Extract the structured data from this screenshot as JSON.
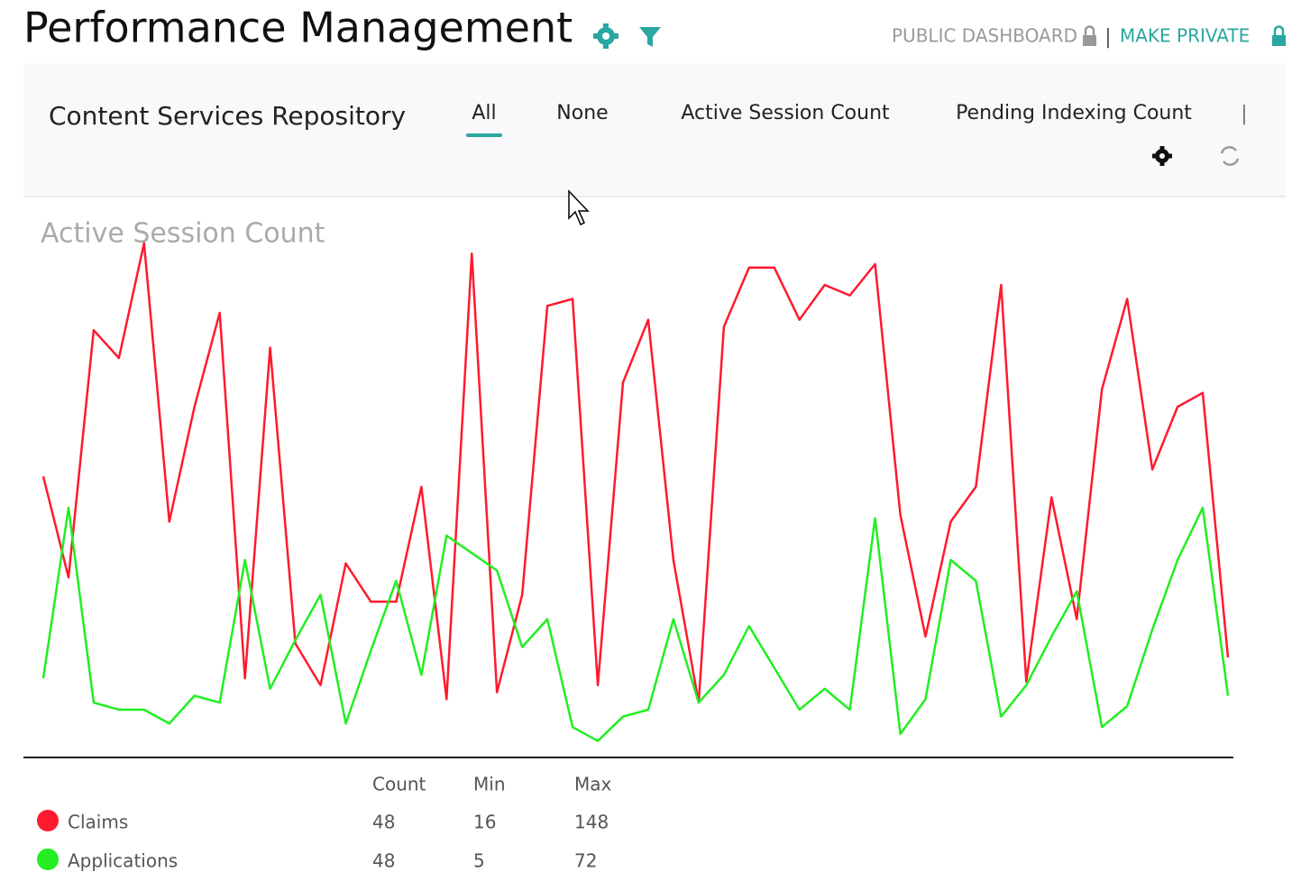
{
  "header": {
    "title": "Performance Management",
    "public_label": "PUBLIC DASHBOARD",
    "separator": "|",
    "make_private": "MAKE PRIVATE"
  },
  "panel": {
    "title": "Content Services Repository",
    "tabs": [
      "All",
      "None",
      "Active Session Count",
      "Pending Indexing Count"
    ],
    "separator": "|"
  },
  "chart_data": {
    "type": "line",
    "title": "Active Session Count",
    "ylim": [
      0,
      150
    ],
    "stats_columns": [
      "Count",
      "Min",
      "Max"
    ],
    "series": [
      {
        "name": "Claims",
        "color": "#ff1a2e",
        "stats": [
          48,
          16,
          148
        ],
        "values": [
          81,
          52,
          123,
          115,
          148,
          68,
          101,
          128,
          23,
          118,
          33,
          21,
          56,
          45,
          45,
          78,
          17,
          145,
          19,
          47,
          130,
          132,
          21,
          108,
          126,
          57,
          16,
          124,
          141,
          141,
          126,
          136,
          133,
          142,
          70,
          35,
          68,
          78,
          136,
          22,
          75,
          40,
          106,
          132,
          83,
          101,
          105,
          29
        ]
      },
      {
        "name": "Applications",
        "color": "#22ee22",
        "stats": [
          48,
          5,
          72
        ],
        "values": [
          23,
          72,
          16,
          14,
          14,
          10,
          18,
          16,
          57,
          20,
          34,
          47,
          10,
          31,
          51,
          24,
          64,
          59,
          54,
          32,
          40,
          9,
          5,
          12,
          14,
          40,
          16,
          24,
          38,
          26,
          14,
          20,
          14,
          69,
          7,
          17,
          57,
          51,
          12,
          21,
          35,
          48,
          9,
          15,
          37,
          57,
          72,
          18
        ]
      }
    ]
  }
}
